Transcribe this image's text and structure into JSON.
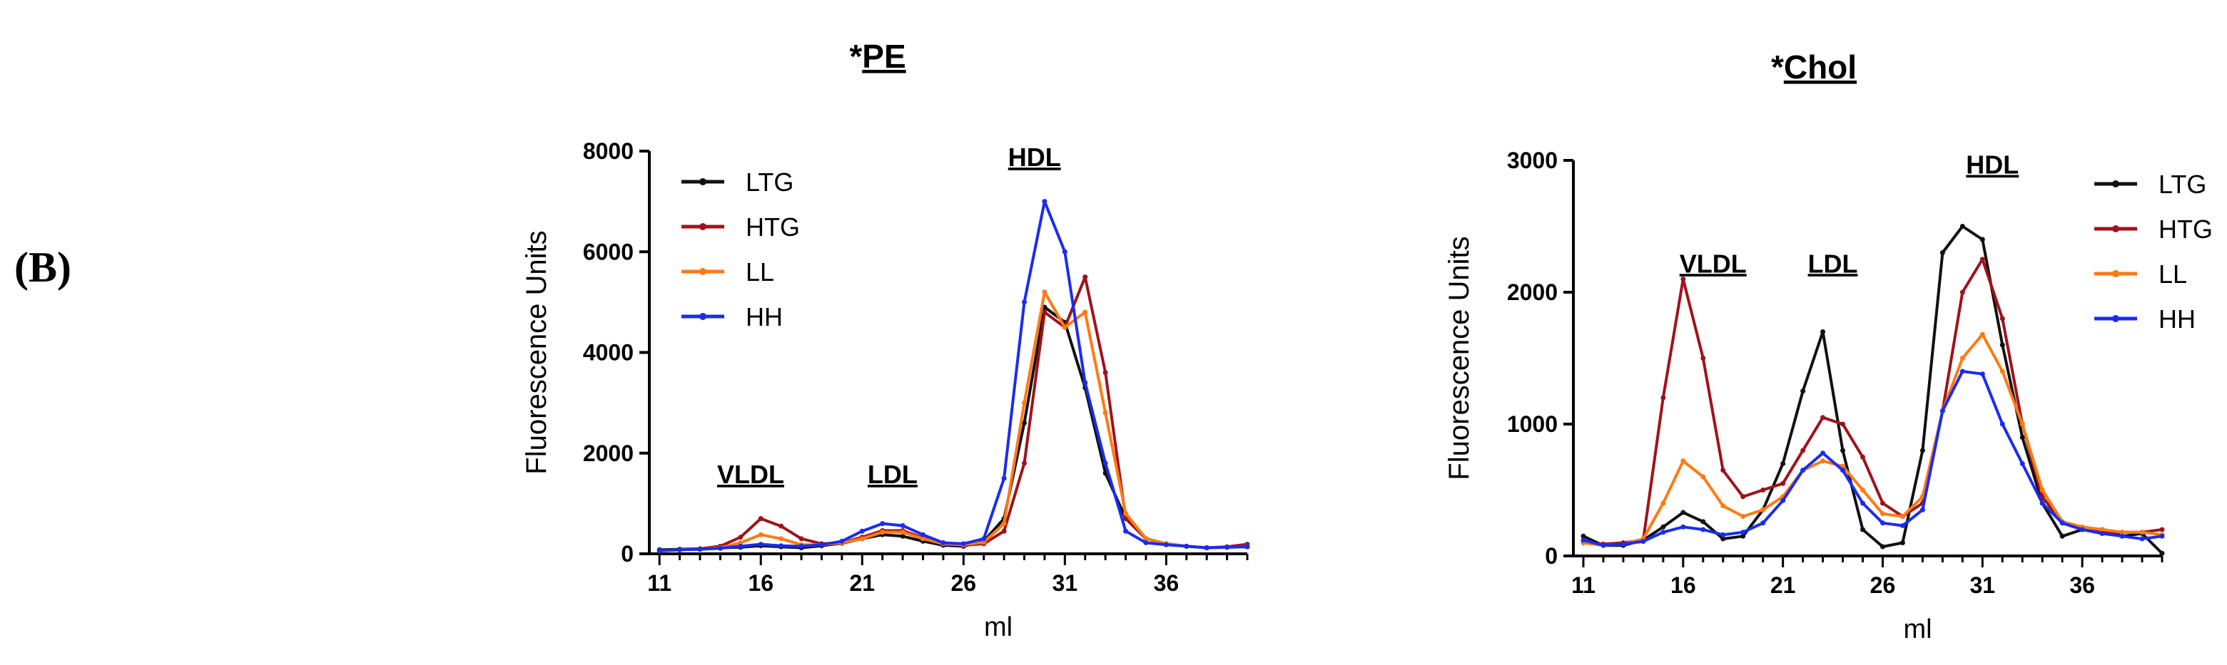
{
  "panel_label": "(B)",
  "colors": {
    "LTG": "#111111",
    "HTG": "#a0121a",
    "LL": "#ff7a14",
    "HH": "#1a2cf0"
  },
  "chart_data": [
    {
      "type": "line",
      "title_prefix": "*",
      "title_main": "PE",
      "xlabel": "ml",
      "ylabel": "Fluorescence Units",
      "xlim": [
        10.5,
        40
      ],
      "ylim": [
        0,
        8000
      ],
      "xticks": [
        11,
        16,
        21,
        26,
        31,
        36
      ],
      "yticks": [
        0,
        2000,
        4000,
        6000,
        8000
      ],
      "legend_position": "top-left",
      "region_labels": [
        {
          "text": "VLDL",
          "x": 15.5,
          "y": 1400
        },
        {
          "text": "LDL",
          "x": 22.5,
          "y": 1400
        },
        {
          "text": "HDL",
          "x": 29.5,
          "y": 7700
        }
      ],
      "series": [
        {
          "name": "LTG",
          "x": [
            11,
            12,
            13,
            14,
            15,
            16,
            17,
            18,
            19,
            20,
            21,
            22,
            23,
            24,
            25,
            26,
            27,
            28,
            29,
            30,
            31,
            32,
            33,
            34,
            35,
            36,
            37,
            38,
            39,
            40
          ],
          "y": [
            80,
            90,
            100,
            120,
            130,
            160,
            140,
            120,
            160,
            210,
            300,
            380,
            350,
            250,
            170,
            150,
            250,
            700,
            2600,
            4900,
            4600,
            3300,
            1600,
            700,
            300,
            200,
            150,
            120,
            130,
            140
          ]
        },
        {
          "name": "HTG",
          "x": [
            11,
            12,
            13,
            14,
            15,
            16,
            17,
            18,
            19,
            20,
            21,
            22,
            23,
            24,
            25,
            26,
            27,
            28,
            29,
            30,
            31,
            32,
            33,
            34,
            35,
            36,
            37,
            38,
            39,
            40
          ],
          "y": [
            60,
            80,
            100,
            150,
            330,
            700,
            550,
            300,
            200,
            220,
            330,
            460,
            460,
            320,
            200,
            170,
            200,
            450,
            1800,
            4800,
            4500,
            5500,
            3600,
            700,
            300,
            200,
            150,
            120,
            140,
            190
          ]
        },
        {
          "name": "LL",
          "x": [
            11,
            12,
            13,
            14,
            15,
            16,
            17,
            18,
            19,
            20,
            21,
            22,
            23,
            24,
            25,
            26,
            27,
            28,
            29,
            30,
            31,
            32,
            33,
            34,
            35,
            36,
            37,
            38,
            39,
            40
          ],
          "y": [
            60,
            80,
            90,
            120,
            220,
            380,
            300,
            180,
            180,
            220,
            300,
            430,
            430,
            300,
            200,
            180,
            230,
            600,
            3000,
            5200,
            4500,
            4800,
            2800,
            800,
            300,
            200,
            150,
            120,
            130,
            140
          ]
        },
        {
          "name": "HH",
          "x": [
            11,
            12,
            13,
            14,
            15,
            16,
            17,
            18,
            19,
            20,
            21,
            22,
            23,
            24,
            25,
            26,
            27,
            28,
            29,
            30,
            31,
            32,
            33,
            34,
            35,
            36,
            37,
            38,
            39,
            40
          ],
          "y": [
            60,
            80,
            90,
            110,
            150,
            190,
            160,
            150,
            180,
            250,
            450,
            600,
            560,
            380,
            220,
            200,
            300,
            1500,
            5000,
            7000,
            6000,
            3400,
            1800,
            450,
            220,
            180,
            150,
            120,
            130,
            140
          ]
        }
      ]
    },
    {
      "type": "line",
      "title_prefix": "*",
      "title_main": "Chol",
      "xlabel": "ml",
      "ylabel": "Fluorescence Units",
      "xlim": [
        10.5,
        40
      ],
      "ylim": [
        0,
        3000
      ],
      "xticks": [
        11,
        16,
        21,
        26,
        31,
        36
      ],
      "yticks": [
        0,
        1000,
        2000,
        3000
      ],
      "legend_position": "top-right",
      "region_labels": [
        {
          "text": "VLDL",
          "x": 17.5,
          "y": 2150
        },
        {
          "text": "LDL",
          "x": 23.5,
          "y": 2150
        },
        {
          "text": "HDL",
          "x": 31.5,
          "y": 2900
        }
      ],
      "series": [
        {
          "name": "LTG",
          "x": [
            11,
            12,
            13,
            14,
            15,
            16,
            17,
            18,
            19,
            20,
            21,
            22,
            23,
            24,
            25,
            26,
            27,
            28,
            29,
            30,
            31,
            32,
            33,
            34,
            35,
            36,
            37,
            38,
            39,
            40
          ],
          "y": [
            150,
            80,
            80,
            120,
            220,
            330,
            260,
            130,
            150,
            350,
            700,
            1250,
            1700,
            800,
            200,
            70,
            100,
            800,
            2300,
            2500,
            2400,
            1600,
            900,
            400,
            150,
            200,
            200,
            150,
            170,
            20
          ]
        },
        {
          "name": "HTG",
          "x": [
            11,
            12,
            13,
            14,
            15,
            16,
            17,
            18,
            19,
            20,
            21,
            22,
            23,
            24,
            25,
            26,
            27,
            28,
            29,
            30,
            31,
            32,
            33,
            34,
            35,
            36,
            37,
            38,
            39,
            40
          ],
          "y": [
            100,
            90,
            100,
            120,
            1200,
            2100,
            1500,
            650,
            450,
            500,
            550,
            800,
            1050,
            1000,
            750,
            400,
            300,
            400,
            1100,
            2000,
            2250,
            1800,
            1000,
            450,
            250,
            200,
            180,
            180,
            180,
            200
          ]
        },
        {
          "name": "LL",
          "x": [
            11,
            12,
            13,
            14,
            15,
            16,
            17,
            18,
            19,
            20,
            21,
            22,
            23,
            24,
            25,
            26,
            27,
            28,
            29,
            30,
            31,
            32,
            33,
            34,
            35,
            36,
            37,
            38,
            39,
            40
          ],
          "y": [
            100,
            80,
            90,
            130,
            400,
            720,
            600,
            380,
            300,
            350,
            450,
            650,
            720,
            680,
            500,
            320,
            300,
            450,
            1100,
            1500,
            1680,
            1400,
            1000,
            500,
            260,
            220,
            200,
            180,
            180,
            160
          ]
        },
        {
          "name": "HH",
          "x": [
            11,
            12,
            13,
            14,
            15,
            16,
            17,
            18,
            19,
            20,
            21,
            22,
            23,
            24,
            25,
            26,
            27,
            28,
            29,
            30,
            31,
            32,
            33,
            34,
            35,
            36,
            37,
            38,
            39,
            40
          ],
          "y": [
            120,
            80,
            90,
            110,
            180,
            220,
            200,
            160,
            180,
            250,
            420,
            650,
            780,
            650,
            400,
            250,
            230,
            350,
            1100,
            1400,
            1380,
            1000,
            700,
            400,
            250,
            200,
            170,
            150,
            130,
            150
          ]
        }
      ]
    }
  ]
}
